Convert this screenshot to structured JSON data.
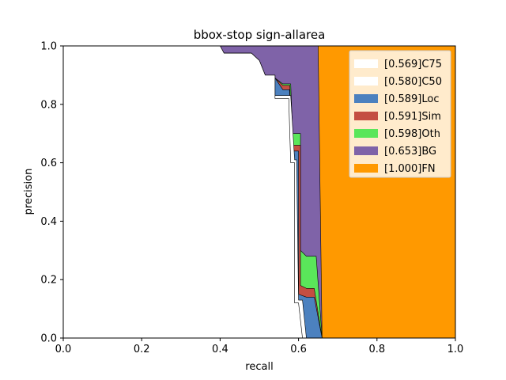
{
  "chart_data": {
    "type": "area",
    "title": "bbox-stop sign-allarea",
    "xlabel": "recall",
    "ylabel": "precision",
    "xlim": [
      0,
      1
    ],
    "ylim": [
      0,
      1
    ],
    "xticks": [
      "0.0",
      "0.2",
      "0.4",
      "0.6",
      "0.8",
      "1.0"
    ],
    "yticks": [
      "0.0",
      "0.2",
      "0.4",
      "0.6",
      "0.8",
      "1.0"
    ],
    "legend_position": "top-right",
    "grid": false,
    "series": [
      {
        "name": "[0.569]C75",
        "color": "#ffffff",
        "points": [
          [
            0,
            1
          ],
          [
            0.4,
            1
          ],
          [
            0.41,
            0.975
          ],
          [
            0.48,
            0.975
          ],
          [
            0.5,
            0.95
          ],
          [
            0.515,
            0.9
          ],
          [
            0.54,
            0.9
          ],
          [
            0.54,
            0.82
          ],
          [
            0.575,
            0.82
          ],
          [
            0.58,
            0.6
          ],
          [
            0.59,
            0.6
          ],
          [
            0.59,
            0.12
          ],
          [
            0.6,
            0.12
          ],
          [
            0.61,
            0
          ]
        ]
      },
      {
        "name": "[0.580]C50",
        "color": "#ffffff",
        "points": [
          [
            0,
            1
          ],
          [
            0.4,
            1
          ],
          [
            0.41,
            0.975
          ],
          [
            0.48,
            0.975
          ],
          [
            0.5,
            0.95
          ],
          [
            0.515,
            0.9
          ],
          [
            0.54,
            0.9
          ],
          [
            0.54,
            0.83
          ],
          [
            0.58,
            0.83
          ],
          [
            0.59,
            0.61
          ],
          [
            0.595,
            0.61
          ],
          [
            0.6,
            0.13
          ],
          [
            0.61,
            0.13
          ],
          [
            0.62,
            0
          ]
        ]
      },
      {
        "name": "[0.589]Loc",
        "color": "#4c81bf",
        "points": [
          [
            0,
            1
          ],
          [
            0.4,
            1
          ],
          [
            0.41,
            0.975
          ],
          [
            0.48,
            0.975
          ],
          [
            0.5,
            0.95
          ],
          [
            0.515,
            0.9
          ],
          [
            0.54,
            0.89
          ],
          [
            0.56,
            0.85
          ],
          [
            0.577,
            0.85
          ],
          [
            0.58,
            0.64
          ],
          [
            0.6,
            0.64
          ],
          [
            0.6,
            0.15
          ],
          [
            0.62,
            0.14
          ],
          [
            0.64,
            0.14
          ],
          [
            0.66,
            0
          ]
        ]
      },
      {
        "name": "[0.591]Sim",
        "color": "#c44e42",
        "points": [
          [
            0,
            1
          ],
          [
            0.4,
            1
          ],
          [
            0.41,
            0.975
          ],
          [
            0.48,
            0.975
          ],
          [
            0.5,
            0.95
          ],
          [
            0.515,
            0.9
          ],
          [
            0.54,
            0.89
          ],
          [
            0.56,
            0.865
          ],
          [
            0.578,
            0.865
          ],
          [
            0.582,
            0.66
          ],
          [
            0.605,
            0.66
          ],
          [
            0.605,
            0.18
          ],
          [
            0.62,
            0.17
          ],
          [
            0.64,
            0.17
          ],
          [
            0.66,
            0
          ]
        ]
      },
      {
        "name": "[0.598]Oth",
        "color": "#5ae65a",
        "points": [
          [
            0,
            1
          ],
          [
            0.4,
            1
          ],
          [
            0.41,
            0.975
          ],
          [
            0.48,
            0.975
          ],
          [
            0.5,
            0.95
          ],
          [
            0.515,
            0.9
          ],
          [
            0.54,
            0.89
          ],
          [
            0.56,
            0.87
          ],
          [
            0.58,
            0.87
          ],
          [
            0.585,
            0.7
          ],
          [
            0.605,
            0.7
          ],
          [
            0.605,
            0.3
          ],
          [
            0.62,
            0.28
          ],
          [
            0.645,
            0.28
          ],
          [
            0.66,
            0
          ]
        ]
      },
      {
        "name": "[0.653]BG",
        "color": "#7f63a8",
        "points": [
          [
            0,
            1
          ],
          [
            0.65,
            1
          ],
          [
            0.66,
            0
          ]
        ]
      },
      {
        "name": "[1.000]FN",
        "color": "#ff9900",
        "points": [
          [
            0,
            1
          ],
          [
            1,
            1
          ],
          [
            1,
            0
          ]
        ]
      }
    ]
  }
}
